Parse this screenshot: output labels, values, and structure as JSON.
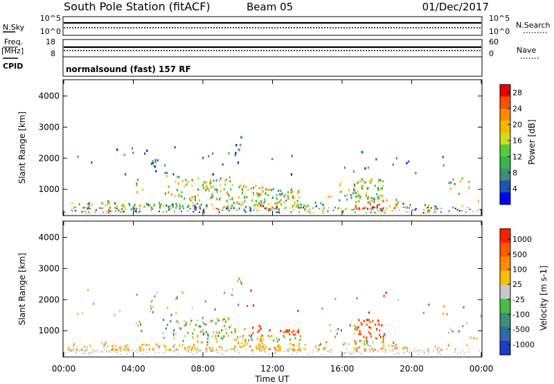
{
  "header": {
    "title": "South Pole Station (fitACF)",
    "beam": "Beam 05",
    "date": "01/Dec/2017"
  },
  "status_panels": {
    "nsky_label": "N.Sky",
    "nsearch_label": "N.Search",
    "noise_ticks_left": [
      "10^5",
      "10^0"
    ],
    "noise_ticks_right": [
      "10^5",
      "10^0"
    ],
    "freq_label": "Freq.",
    "freq_unit": "[MHz]",
    "freq_ticks": [
      "18",
      "8"
    ],
    "nave_label": "Nave",
    "nave_ticks": [
      "60",
      "0"
    ],
    "cpid_label": "CPID",
    "cpid_text": "normalsound (fast) 157 RF"
  },
  "chart_data": [
    {
      "type": "heatmap",
      "name": "power",
      "ylabel": "Slant Range [km]",
      "ylim": [
        180,
        4500
      ],
      "yticks": [
        "1000",
        "2000",
        "3000",
        "4000"
      ],
      "xticks": [
        "00:00",
        "04:00",
        "08:00",
        "12:00",
        "16:00",
        "20:00",
        "00:00"
      ],
      "colorbar_label": "Power [dB]",
      "colorbar_ticks": [
        "4",
        "8",
        "12",
        "16",
        "20",
        "24",
        "28"
      ],
      "colorbar_colors": [
        "#0000ff",
        "#1f55b0",
        "#3d8f78",
        "#37b54a",
        "#52cc3a",
        "#d6d81e",
        "#f5b800",
        "#ff8a00",
        "#ff4f00",
        "#e80000"
      ],
      "time_range_h": [
        0,
        24
      ]
    },
    {
      "type": "heatmap",
      "name": "velocity",
      "ylabel": "Slant Range [km]",
      "ylim": [
        180,
        4500
      ],
      "yticks": [
        "1000",
        "2000",
        "3000",
        "4000"
      ],
      "xticks": [
        "00:00",
        "04:00",
        "08:00",
        "12:00",
        "16:00",
        "20:00",
        "00:00"
      ],
      "xlabel": "Time UT",
      "colorbar_label": "Velocity [m s-1]",
      "colorbar_ticks": [
        "1000",
        "500",
        "100",
        "25",
        "-25",
        "-100",
        "-500",
        "-1000"
      ],
      "colorbar_colors": [
        "#1a3cc8",
        "#2e6aa8",
        "#3d8f78",
        "#43c040",
        "#c8c8c8",
        "#f3c000",
        "#ff8c00",
        "#ff5a00",
        "#ff2000"
      ],
      "time_range_h": [
        0,
        24
      ]
    }
  ]
}
